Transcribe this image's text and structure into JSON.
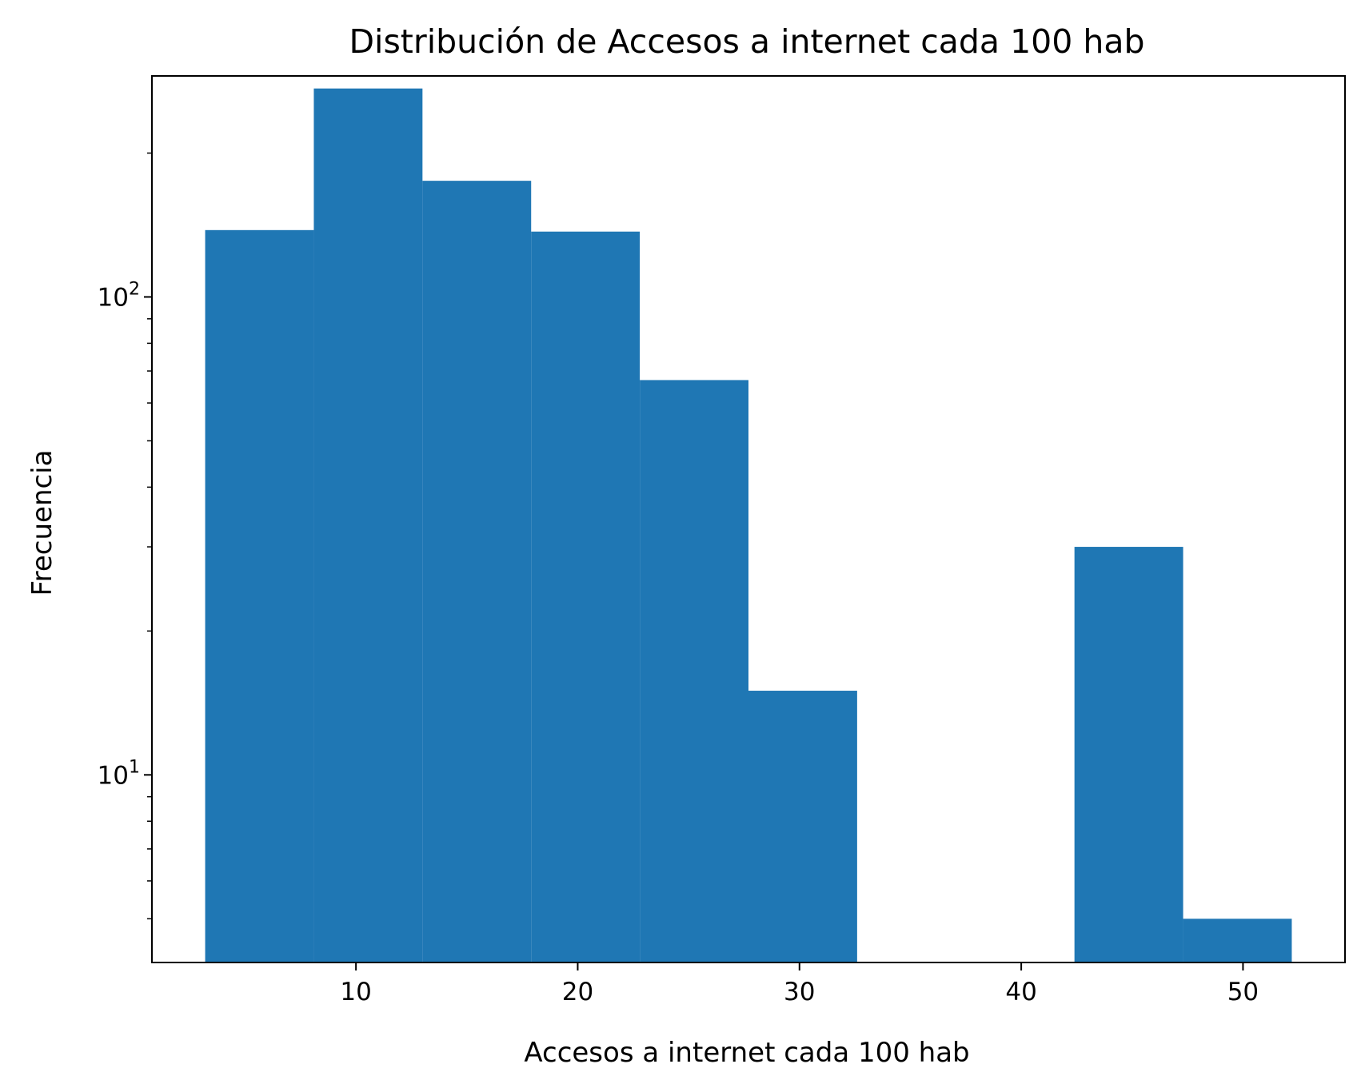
{
  "chart_data": {
    "type": "bar",
    "subtype": "histogram",
    "title": "Distribución de Accesos a internet cada 100 hab",
    "xlabel": "Accesos a internet cada 100 hab",
    "ylabel": "Frecuencia",
    "yscale": "log",
    "xlim": [
      0.8,
      54.6
    ],
    "ylim": [
      4.05,
      290
    ],
    "bin_edges": [
      3.2,
      8.1,
      13.0,
      17.9,
      22.8,
      27.7,
      32.6,
      37.5,
      42.4,
      47.3,
      52.2
    ],
    "counts": [
      138,
      273,
      175,
      137,
      67,
      15,
      0,
      0,
      30,
      5
    ],
    "bar_color": "#1f77b4",
    "xticks": [
      {
        "value": 10,
        "label": "10"
      },
      {
        "value": 20,
        "label": "20"
      },
      {
        "value": 30,
        "label": "30"
      },
      {
        "value": 40,
        "label": "40"
      },
      {
        "value": 50,
        "label": "50"
      }
    ],
    "yticks": [
      {
        "value": 10,
        "base": "10",
        "exp": "1"
      },
      {
        "value": 100,
        "base": "10",
        "exp": "2"
      }
    ],
    "grid": false,
    "legend": "none"
  }
}
